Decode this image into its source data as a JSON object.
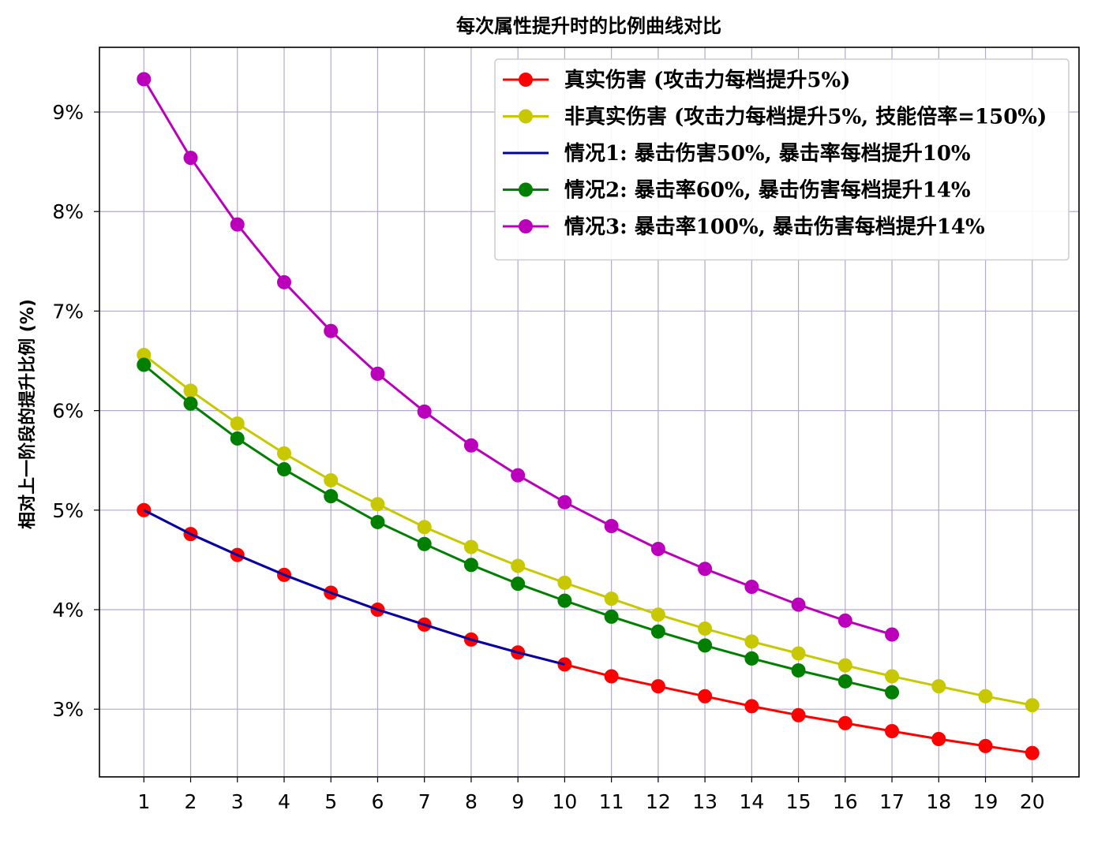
{
  "chart_data": {
    "type": "line",
    "title": "每次属性提升时的比例曲线对比",
    "xlabel": "",
    "ylabel": "相对上一阶段的提升比例 (%)",
    "x": [
      1,
      2,
      3,
      4,
      5,
      6,
      7,
      8,
      9,
      10,
      11,
      12,
      13,
      14,
      15,
      16,
      17,
      18,
      19,
      20
    ],
    "x_ticks": [
      "1",
      "2",
      "3",
      "4",
      "5",
      "6",
      "7",
      "8",
      "9",
      "10",
      "11",
      "12",
      "13",
      "14",
      "15",
      "16",
      "17",
      "18",
      "19",
      "20"
    ],
    "ylim": [
      2.32,
      9.65
    ],
    "xlim": [
      0.05,
      21.0
    ],
    "y_ticks": [
      {
        "value": 3,
        "label": "3%"
      },
      {
        "value": 4,
        "label": "4%"
      },
      {
        "value": 5,
        "label": "5%"
      },
      {
        "value": 6,
        "label": "6%"
      },
      {
        "value": 7,
        "label": "7%"
      },
      {
        "value": 8,
        "label": "8%"
      },
      {
        "value": 9,
        "label": "9%"
      }
    ],
    "grid": true,
    "legend_position": "top-right",
    "series": [
      {
        "name": "真实伤害 (攻击力每档提升5%)",
        "color": "#ff0000",
        "marker": true,
        "x": [
          1,
          2,
          3,
          4,
          5,
          6,
          7,
          8,
          9,
          10,
          11,
          12,
          13,
          14,
          15,
          16,
          17,
          18,
          19,
          20
        ],
        "values": [
          5.0,
          4.76,
          4.55,
          4.35,
          4.17,
          4.0,
          3.85,
          3.7,
          3.57,
          3.45,
          3.33,
          3.23,
          3.13,
          3.03,
          2.94,
          2.86,
          2.78,
          2.7,
          2.63,
          2.56
        ]
      },
      {
        "name": "非真实伤害 (攻击力每档提升5%, 技能倍率=150%)",
        "color": "#c8c800",
        "marker": true,
        "x": [
          1,
          2,
          3,
          4,
          5,
          6,
          7,
          8,
          9,
          10,
          11,
          12,
          13,
          14,
          15,
          16,
          17,
          18,
          19,
          20
        ],
        "values": [
          6.56,
          6.2,
          5.87,
          5.57,
          5.3,
          5.06,
          4.83,
          4.63,
          4.44,
          4.27,
          4.11,
          3.95,
          3.81,
          3.68,
          3.56,
          3.44,
          3.33,
          3.23,
          3.13,
          3.04
        ]
      },
      {
        "name": "情况1: 暴击伤害50%, 暴击率每档提升10%",
        "color": "#0000aa",
        "marker": false,
        "x": [
          1,
          2,
          3,
          4,
          5,
          6,
          7,
          8,
          9,
          10
        ],
        "values": [
          5.0,
          4.76,
          4.55,
          4.35,
          4.17,
          4.0,
          3.85,
          3.7,
          3.57,
          3.45
        ]
      },
      {
        "name": "情况2: 暴击率60%, 暴击伤害每档提升14%",
        "color": "#007f00",
        "marker": true,
        "x": [
          1,
          2,
          3,
          4,
          5,
          6,
          7,
          8,
          9,
          10,
          11,
          12,
          13,
          14,
          15,
          16,
          17
        ],
        "values": [
          6.46,
          6.07,
          5.72,
          5.41,
          5.14,
          4.88,
          4.66,
          4.45,
          4.26,
          4.09,
          3.93,
          3.78,
          3.64,
          3.51,
          3.39,
          3.28,
          3.17
        ]
      },
      {
        "name": "情况3: 暴击率100%, 暴击伤害每档提升14%",
        "color": "#bb00bb",
        "marker": true,
        "x": [
          1,
          2,
          3,
          4,
          5,
          6,
          7,
          8,
          9,
          10,
          11,
          12,
          13,
          14,
          15,
          16,
          17
        ],
        "values": [
          9.33,
          8.54,
          7.87,
          7.29,
          6.8,
          6.37,
          5.99,
          5.65,
          5.35,
          5.08,
          4.84,
          4.61,
          4.41,
          4.23,
          4.05,
          3.89,
          3.75
        ]
      }
    ]
  }
}
